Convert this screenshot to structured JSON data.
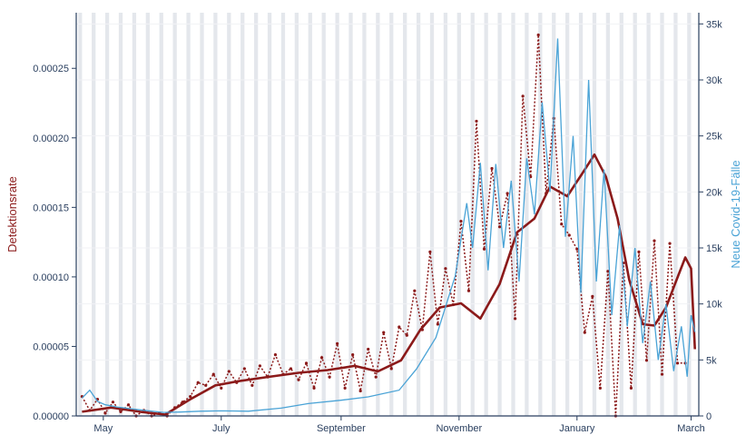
{
  "chart_data": {
    "type": "line",
    "x_axis": {
      "type": "date",
      "tick_labels": [
        "May",
        "July",
        "September",
        "November",
        "January",
        "March"
      ],
      "tick_dates": [
        "2020-05-01",
        "2020-07-01",
        "2020-09-01",
        "2020-11-01",
        "2021-01-01",
        "2021-03-01"
      ],
      "range": [
        "2020-04-17",
        "2021-03-05"
      ]
    },
    "y_left": {
      "label": "Detektionsrate",
      "range": [
        0,
        0.00029
      ],
      "tick_values": [
        0,
        5e-05,
        0.0001,
        0.00015,
        0.0002,
        0.00025
      ],
      "tick_labels": [
        "0.00000",
        "0.00005",
        "0.00010",
        "0.00015",
        "0.00020",
        "0.00025"
      ],
      "color": "#8b1a1a"
    },
    "y_right": {
      "label": "Neue Covid-19-Fälle",
      "range": [
        0,
        36000
      ],
      "tick_values": [
        0,
        5000,
        10000,
        15000,
        20000,
        25000,
        30000,
        35000
      ],
      "tick_labels": [
        "0",
        "5k",
        "10k",
        "15k",
        "20k",
        "25k",
        "30k",
        "35k"
      ],
      "color": "#4aa3d6"
    },
    "background_bands": "weekend days shaded light grey",
    "grid": true,
    "series": [
      {
        "kind": "daily",
        "axis": "left",
        "style": "dotted markers",
        "color": "#8b1a1a",
        "points": [
          [
            "2020-04-20",
            1.4e-05
          ],
          [
            "2020-04-24",
            4e-06
          ],
          [
            "2020-04-28",
            1.2e-05
          ],
          [
            "2020-05-02",
            2e-06
          ],
          [
            "2020-05-06",
            1e-05
          ],
          [
            "2020-05-10",
            3e-06
          ],
          [
            "2020-05-14",
            8e-06
          ],
          [
            "2020-05-18",
            0.0
          ],
          [
            "2020-05-22",
            4e-06
          ],
          [
            "2020-05-26",
            0.0
          ],
          [
            "2020-05-30",
            2e-06
          ],
          [
            "2020-06-03",
            0.0
          ],
          [
            "2020-06-07",
            6e-06
          ],
          [
            "2020-06-11",
            1e-05
          ],
          [
            "2020-06-15",
            1.4e-05
          ],
          [
            "2020-06-19",
            2.4e-05
          ],
          [
            "2020-06-23",
            2.2e-05
          ],
          [
            "2020-06-27",
            3e-05
          ],
          [
            "2020-07-01",
            2e-05
          ],
          [
            "2020-07-05",
            3.2e-05
          ],
          [
            "2020-07-09",
            2.4e-05
          ],
          [
            "2020-07-13",
            3.4e-05
          ],
          [
            "2020-07-17",
            2.2e-05
          ],
          [
            "2020-07-21",
            3.6e-05
          ],
          [
            "2020-07-25",
            2.8e-05
          ],
          [
            "2020-07-29",
            4.4e-05
          ],
          [
            "2020-08-02",
            3e-05
          ],
          [
            "2020-08-06",
            3.4e-05
          ],
          [
            "2020-08-10",
            2.6e-05
          ],
          [
            "2020-08-14",
            3.8e-05
          ],
          [
            "2020-08-18",
            2e-05
          ],
          [
            "2020-08-22",
            4.2e-05
          ],
          [
            "2020-08-26",
            2.8e-05
          ],
          [
            "2020-08-30",
            5.2e-05
          ],
          [
            "2020-09-03",
            2e-05
          ],
          [
            "2020-09-07",
            4.4e-05
          ],
          [
            "2020-09-11",
            1.8e-05
          ],
          [
            "2020-09-15",
            4.8e-05
          ],
          [
            "2020-09-19",
            2.8e-05
          ],
          [
            "2020-09-23",
            6e-05
          ],
          [
            "2020-09-27",
            3.4e-05
          ],
          [
            "2020-10-01",
            6.4e-05
          ],
          [
            "2020-10-05",
            5.8e-05
          ],
          [
            "2020-10-09",
            9e-05
          ],
          [
            "2020-10-13",
            6.2e-05
          ],
          [
            "2020-10-17",
            0.000118
          ],
          [
            "2020-10-21",
            6.6e-05
          ],
          [
            "2020-10-25",
            0.000106
          ],
          [
            "2020-10-29",
            8e-05
          ],
          [
            "2020-11-02",
            0.00014
          ],
          [
            "2020-11-06",
            9e-05
          ],
          [
            "2020-11-10",
            0.000212
          ],
          [
            "2020-11-14",
            0.00012
          ],
          [
            "2020-11-18",
            0.000178
          ],
          [
            "2020-11-22",
            0.000136
          ],
          [
            "2020-11-26",
            0.00016
          ],
          [
            "2020-11-30",
            7e-05
          ],
          [
            "2020-12-04",
            0.00023
          ],
          [
            "2020-12-08",
            0.000172
          ],
          [
            "2020-12-12",
            0.000274
          ],
          [
            "2020-12-16",
            0.00016
          ],
          [
            "2020-12-20",
            0.000214
          ],
          [
            "2020-12-24",
            0.000138
          ],
          [
            "2020-12-28",
            0.00013
          ],
          [
            "2021-01-01",
            0.00012
          ],
          [
            "2021-01-05",
            6e-05
          ],
          [
            "2021-01-09",
            8.6e-05
          ],
          [
            "2021-01-13",
            2e-05
          ],
          [
            "2021-01-17",
            0.000104
          ],
          [
            "2021-01-21",
            0.0
          ],
          [
            "2021-01-25",
            0.00011
          ],
          [
            "2021-01-29",
            2e-05
          ],
          [
            "2021-02-02",
            0.000118
          ],
          [
            "2021-02-06",
            4e-05
          ],
          [
            "2021-02-10",
            0.000126
          ],
          [
            "2021-02-14",
            3e-05
          ],
          [
            "2021-02-18",
            0.000124
          ],
          [
            "2021-02-22",
            3.8e-05
          ],
          [
            "2021-02-26",
            3.8e-05
          ]
        ]
      },
      {
        "kind": "smoothed",
        "axis": "left",
        "style": "thick solid",
        "color": "#8b1a1a",
        "points": [
          [
            "2020-04-20",
            3e-06
          ],
          [
            "2020-05-05",
            6e-06
          ],
          [
            "2020-05-20",
            3e-06
          ],
          [
            "2020-06-02",
            1e-06
          ],
          [
            "2020-06-15",
            1.2e-05
          ],
          [
            "2020-06-28",
            2.2e-05
          ],
          [
            "2020-07-10",
            2.5e-05
          ],
          [
            "2020-07-25",
            2.8e-05
          ],
          [
            "2020-08-10",
            3.1e-05
          ],
          [
            "2020-08-25",
            3.3e-05
          ],
          [
            "2020-09-08",
            3.6e-05
          ],
          [
            "2020-09-20",
            3.2e-05
          ],
          [
            "2020-10-02",
            4e-05
          ],
          [
            "2020-10-12",
            6.2e-05
          ],
          [
            "2020-10-22",
            7.8e-05
          ],
          [
            "2020-11-02",
            8.1e-05
          ],
          [
            "2020-11-12",
            7e-05
          ],
          [
            "2020-11-22",
            9.5e-05
          ],
          [
            "2020-12-01",
            0.000132
          ],
          [
            "2020-12-10",
            0.000142
          ],
          [
            "2020-12-18",
            0.000165
          ],
          [
            "2020-12-27",
            0.000158
          ],
          [
            "2021-01-04",
            0.000175
          ],
          [
            "2021-01-10",
            0.000188
          ],
          [
            "2021-01-16",
            0.000172
          ],
          [
            "2021-01-22",
            0.000142
          ],
          [
            "2021-01-28",
            9.8e-05
          ],
          [
            "2021-02-04",
            6.6e-05
          ],
          [
            "2021-02-10",
            6.5e-05
          ],
          [
            "2021-02-16",
            7.8e-05
          ],
          [
            "2021-02-21",
            9.6e-05
          ],
          [
            "2021-02-26",
            0.000114
          ],
          [
            "2021-03-01",
            0.000106
          ],
          [
            "2021-03-03",
            4.8e-05
          ]
        ]
      },
      {
        "name": "Neue Covid-19-Fälle",
        "axis": "right",
        "style": "thin solid",
        "color": "#4aa3d6",
        "points": [
          [
            "2020-04-20",
            1600
          ],
          [
            "2020-04-24",
            2300
          ],
          [
            "2020-04-28",
            1300
          ],
          [
            "2020-05-02",
            1000
          ],
          [
            "2020-05-08",
            800
          ],
          [
            "2020-05-15",
            650
          ],
          [
            "2020-05-22",
            500
          ],
          [
            "2020-06-01",
            320
          ],
          [
            "2020-06-10",
            350
          ],
          [
            "2020-06-20",
            420
          ],
          [
            "2020-07-01",
            450
          ],
          [
            "2020-07-15",
            420
          ],
          [
            "2020-08-01",
            700
          ],
          [
            "2020-08-15",
            1100
          ],
          [
            "2020-09-01",
            1400
          ],
          [
            "2020-09-15",
            1700
          ],
          [
            "2020-10-01",
            2300
          ],
          [
            "2020-10-10",
            4200
          ],
          [
            "2020-10-20",
            7000
          ],
          [
            "2020-10-30",
            12500
          ],
          [
            "2020-11-05",
            19000
          ],
          [
            "2020-11-08",
            15000
          ],
          [
            "2020-11-12",
            22600
          ],
          [
            "2020-11-16",
            13000
          ],
          [
            "2020-11-20",
            22500
          ],
          [
            "2020-11-24",
            15000
          ],
          [
            "2020-11-28",
            21000
          ],
          [
            "2020-12-02",
            12000
          ],
          [
            "2020-12-06",
            23000
          ],
          [
            "2020-12-10",
            18000
          ],
          [
            "2020-12-14",
            28000
          ],
          [
            "2020-12-18",
            20000
          ],
          [
            "2020-12-22",
            33700
          ],
          [
            "2020-12-26",
            16000
          ],
          [
            "2020-12-30",
            25000
          ],
          [
            "2021-01-03",
            11000
          ],
          [
            "2021-01-07",
            30000
          ],
          [
            "2021-01-11",
            12000
          ],
          [
            "2021-01-15",
            22000
          ],
          [
            "2021-01-19",
            9000
          ],
          [
            "2021-01-23",
            17000
          ],
          [
            "2021-01-27",
            8000
          ],
          [
            "2021-01-31",
            15000
          ],
          [
            "2021-02-04",
            6500
          ],
          [
            "2021-02-08",
            12000
          ],
          [
            "2021-02-12",
            5000
          ],
          [
            "2021-02-16",
            10000
          ],
          [
            "2021-02-20",
            4000
          ],
          [
            "2021-02-24",
            8000
          ],
          [
            "2021-02-27",
            3500
          ],
          [
            "2021-03-01",
            9000
          ],
          [
            "2021-03-03",
            7500
          ]
        ]
      }
    ]
  }
}
